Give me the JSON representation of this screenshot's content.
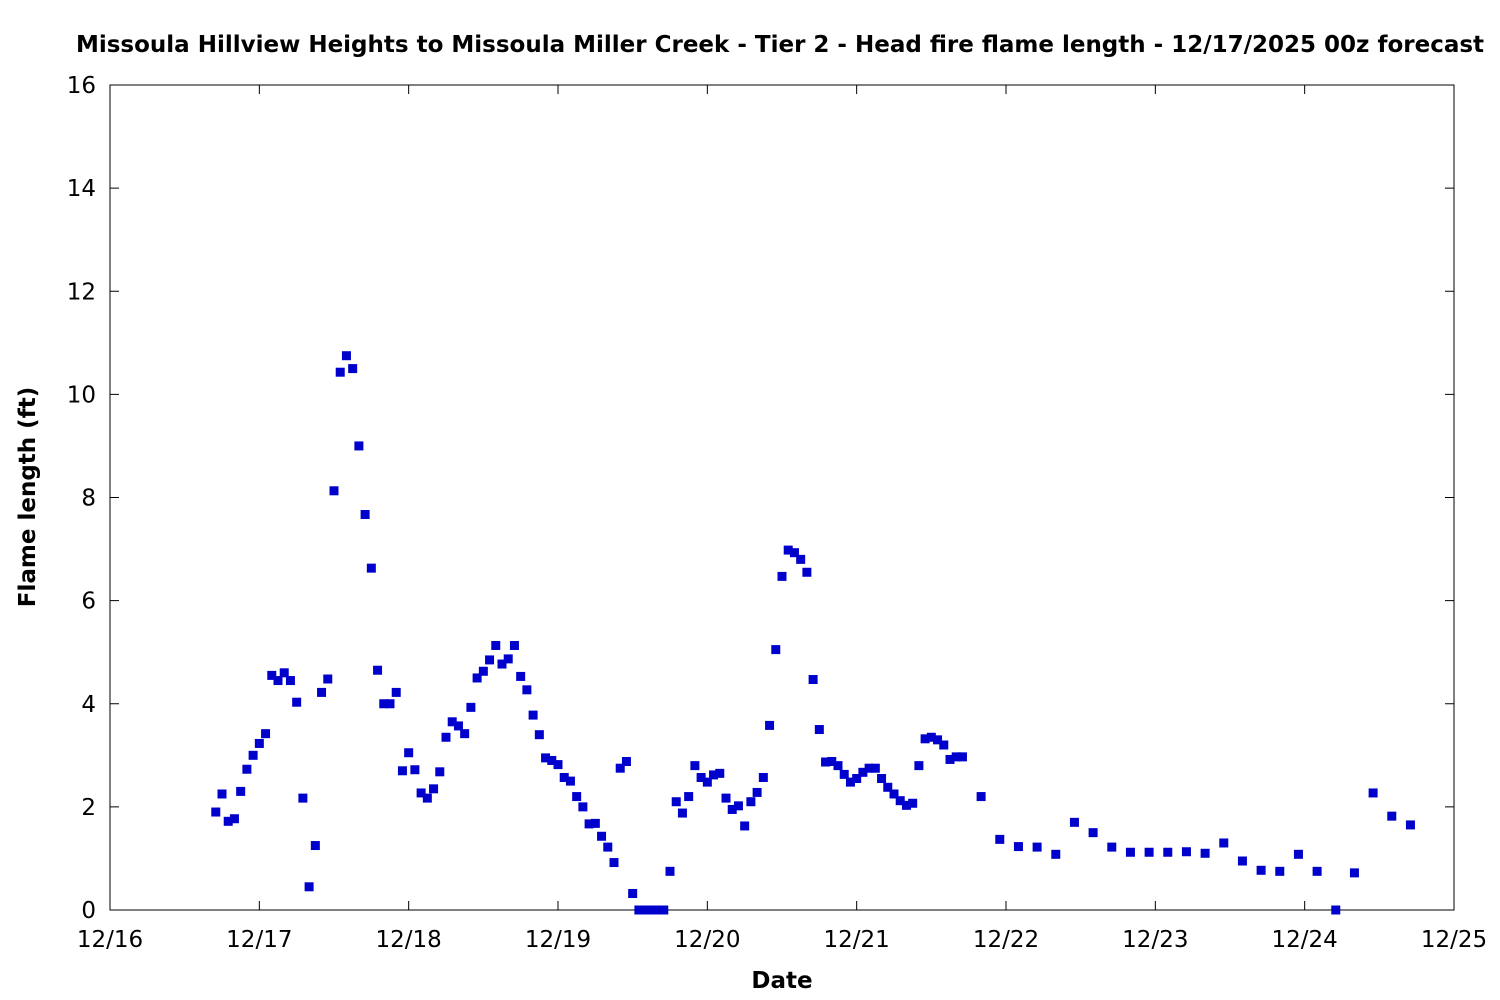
{
  "chart_data": {
    "type": "scatter",
    "title": "Missoula Hillview Heights to Missoula Miller Creek - Tier 2 - Head fire flame length - 12/17/2025 00z forecast",
    "xlabel": "Date",
    "ylabel": "Flame length (ft)",
    "x_tick_labels": [
      "12/16",
      "12/17",
      "12/18",
      "12/19",
      "12/20",
      "12/21",
      "12/22",
      "12/23",
      "12/24",
      "12/25"
    ],
    "y_tick_labels": [
      "0",
      "2",
      "4",
      "6",
      "8",
      "10",
      "12",
      "14",
      "16"
    ],
    "xlim": [
      "2025-12-16T00:00",
      "2025-12-25T00:00"
    ],
    "ylim": [
      0,
      16
    ],
    "grid": false,
    "legend": "none",
    "marker_color": "#0000cc",
    "series": [
      {
        "points": [
          [
            "2025-12-16T17:00",
            1.9
          ],
          [
            "2025-12-16T18:00",
            2.25
          ],
          [
            "2025-12-16T19:00",
            1.72
          ],
          [
            "2025-12-16T20:00",
            1.77
          ],
          [
            "2025-12-16T21:00",
            2.3
          ],
          [
            "2025-12-16T22:00",
            2.73
          ],
          [
            "2025-12-16T23:00",
            3.0
          ],
          [
            "2025-12-17T00:00",
            3.23
          ],
          [
            "2025-12-17T01:00",
            3.42
          ],
          [
            "2025-12-17T02:00",
            4.55
          ],
          [
            "2025-12-17T03:00",
            4.45
          ],
          [
            "2025-12-17T04:00",
            4.6
          ],
          [
            "2025-12-17T05:00",
            4.45
          ],
          [
            "2025-12-17T06:00",
            4.03
          ],
          [
            "2025-12-17T07:00",
            2.17
          ],
          [
            "2025-12-17T08:00",
            0.45
          ],
          [
            "2025-12-17T09:00",
            1.25
          ],
          [
            "2025-12-17T10:00",
            4.22
          ],
          [
            "2025-12-17T11:00",
            4.48
          ],
          [
            "2025-12-17T12:00",
            8.13
          ],
          [
            "2025-12-17T13:00",
            10.43
          ],
          [
            "2025-12-17T14:00",
            10.75
          ],
          [
            "2025-12-17T15:00",
            10.5
          ],
          [
            "2025-12-17T16:00",
            9.0
          ],
          [
            "2025-12-17T17:00",
            7.67
          ],
          [
            "2025-12-17T18:00",
            6.63
          ],
          [
            "2025-12-17T19:00",
            4.65
          ],
          [
            "2025-12-17T20:00",
            4.0
          ],
          [
            "2025-12-17T21:00",
            4.0
          ],
          [
            "2025-12-17T22:00",
            4.22
          ],
          [
            "2025-12-17T23:00",
            2.7
          ],
          [
            "2025-12-18T00:00",
            3.05
          ],
          [
            "2025-12-18T01:00",
            2.72
          ],
          [
            "2025-12-18T02:00",
            2.27
          ],
          [
            "2025-12-18T03:00",
            2.17
          ],
          [
            "2025-12-18T04:00",
            2.35
          ],
          [
            "2025-12-18T05:00",
            2.68
          ],
          [
            "2025-12-18T06:00",
            3.35
          ],
          [
            "2025-12-18T07:00",
            3.65
          ],
          [
            "2025-12-18T08:00",
            3.57
          ],
          [
            "2025-12-18T09:00",
            3.42
          ],
          [
            "2025-12-18T10:00",
            3.93
          ],
          [
            "2025-12-18T11:00",
            4.5
          ],
          [
            "2025-12-18T12:00",
            4.63
          ],
          [
            "2025-12-18T13:00",
            4.85
          ],
          [
            "2025-12-18T14:00",
            5.13
          ],
          [
            "2025-12-18T15:00",
            4.77
          ],
          [
            "2025-12-18T16:00",
            4.87
          ],
          [
            "2025-12-18T17:00",
            5.13
          ],
          [
            "2025-12-18T18:00",
            4.53
          ],
          [
            "2025-12-18T19:00",
            4.27
          ],
          [
            "2025-12-18T20:00",
            3.78
          ],
          [
            "2025-12-18T21:00",
            3.4
          ],
          [
            "2025-12-18T22:00",
            2.95
          ],
          [
            "2025-12-18T23:00",
            2.9
          ],
          [
            "2025-12-19T00:00",
            2.82
          ],
          [
            "2025-12-19T01:00",
            2.57
          ],
          [
            "2025-12-19T02:00",
            2.5
          ],
          [
            "2025-12-19T03:00",
            2.2
          ],
          [
            "2025-12-19T04:00",
            2.0
          ],
          [
            "2025-12-19T05:00",
            1.67
          ],
          [
            "2025-12-19T06:00",
            1.68
          ],
          [
            "2025-12-19T07:00",
            1.43
          ],
          [
            "2025-12-19T08:00",
            1.22
          ],
          [
            "2025-12-19T09:00",
            0.92
          ],
          [
            "2025-12-19T10:00",
            2.75
          ],
          [
            "2025-12-19T11:00",
            2.88
          ],
          [
            "2025-12-19T12:00",
            0.32
          ],
          [
            "2025-12-19T13:00",
            0.0
          ],
          [
            "2025-12-19T14:00",
            0.0
          ],
          [
            "2025-12-19T15:00",
            0.0
          ],
          [
            "2025-12-19T16:00",
            0.0
          ],
          [
            "2025-12-19T17:00",
            0.0
          ],
          [
            "2025-12-19T18:00",
            0.75
          ],
          [
            "2025-12-19T19:00",
            2.1
          ],
          [
            "2025-12-19T20:00",
            1.88
          ],
          [
            "2025-12-19T21:00",
            2.2
          ],
          [
            "2025-12-19T22:00",
            2.8
          ],
          [
            "2025-12-19T23:00",
            2.57
          ],
          [
            "2025-12-20T00:00",
            2.48
          ],
          [
            "2025-12-20T01:00",
            2.62
          ],
          [
            "2025-12-20T02:00",
            2.65
          ],
          [
            "2025-12-20T03:00",
            2.17
          ],
          [
            "2025-12-20T04:00",
            1.95
          ],
          [
            "2025-12-20T05:00",
            2.02
          ],
          [
            "2025-12-20T06:00",
            1.63
          ],
          [
            "2025-12-20T07:00",
            2.1
          ],
          [
            "2025-12-20T08:00",
            2.28
          ],
          [
            "2025-12-20T09:00",
            2.57
          ],
          [
            "2025-12-20T10:00",
            3.58
          ],
          [
            "2025-12-20T11:00",
            5.05
          ],
          [
            "2025-12-20T12:00",
            6.47
          ],
          [
            "2025-12-20T13:00",
            6.98
          ],
          [
            "2025-12-20T14:00",
            6.93
          ],
          [
            "2025-12-20T15:00",
            6.8
          ],
          [
            "2025-12-20T16:00",
            6.55
          ],
          [
            "2025-12-20T17:00",
            4.47
          ],
          [
            "2025-12-20T18:00",
            3.5
          ],
          [
            "2025-12-20T19:00",
            2.87
          ],
          [
            "2025-12-20T20:00",
            2.88
          ],
          [
            "2025-12-20T21:00",
            2.8
          ],
          [
            "2025-12-20T22:00",
            2.63
          ],
          [
            "2025-12-20T23:00",
            2.48
          ],
          [
            "2025-12-21T00:00",
            2.55
          ],
          [
            "2025-12-21T01:00",
            2.67
          ],
          [
            "2025-12-21T02:00",
            2.75
          ],
          [
            "2025-12-21T03:00",
            2.75
          ],
          [
            "2025-12-21T04:00",
            2.55
          ],
          [
            "2025-12-21T05:00",
            2.38
          ],
          [
            "2025-12-21T06:00",
            2.25
          ],
          [
            "2025-12-21T07:00",
            2.12
          ],
          [
            "2025-12-21T08:00",
            2.03
          ],
          [
            "2025-12-21T09:00",
            2.07
          ],
          [
            "2025-12-21T10:00",
            2.8
          ],
          [
            "2025-12-21T11:00",
            3.32
          ],
          [
            "2025-12-21T12:00",
            3.35
          ],
          [
            "2025-12-21T13:00",
            3.3
          ],
          [
            "2025-12-21T14:00",
            3.2
          ],
          [
            "2025-12-21T15:00",
            2.92
          ],
          [
            "2025-12-21T16:00",
            2.97
          ],
          [
            "2025-12-21T17:00",
            2.97
          ],
          [
            "2025-12-21T20:00",
            2.2
          ],
          [
            "2025-12-21T23:00",
            1.37
          ],
          [
            "2025-12-22T02:00",
            1.23
          ],
          [
            "2025-12-22T05:00",
            1.22
          ],
          [
            "2025-12-22T08:00",
            1.08
          ],
          [
            "2025-12-22T11:00",
            1.7
          ],
          [
            "2025-12-22T14:00",
            1.5
          ],
          [
            "2025-12-22T17:00",
            1.22
          ],
          [
            "2025-12-22T20:00",
            1.12
          ],
          [
            "2025-12-22T23:00",
            1.12
          ],
          [
            "2025-12-23T02:00",
            1.12
          ],
          [
            "2025-12-23T05:00",
            1.13
          ],
          [
            "2025-12-23T08:00",
            1.1
          ],
          [
            "2025-12-23T11:00",
            1.3
          ],
          [
            "2025-12-23T14:00",
            0.95
          ],
          [
            "2025-12-23T17:00",
            0.77
          ],
          [
            "2025-12-23T20:00",
            0.75
          ],
          [
            "2025-12-23T23:00",
            1.08
          ],
          [
            "2025-12-24T02:00",
            0.75
          ],
          [
            "2025-12-24T05:00",
            0.0
          ],
          [
            "2025-12-24T08:00",
            0.72
          ],
          [
            "2025-12-24T11:00",
            2.27
          ],
          [
            "2025-12-24T14:00",
            1.82
          ],
          [
            "2025-12-24T17:00",
            1.65
          ]
        ]
      }
    ]
  }
}
